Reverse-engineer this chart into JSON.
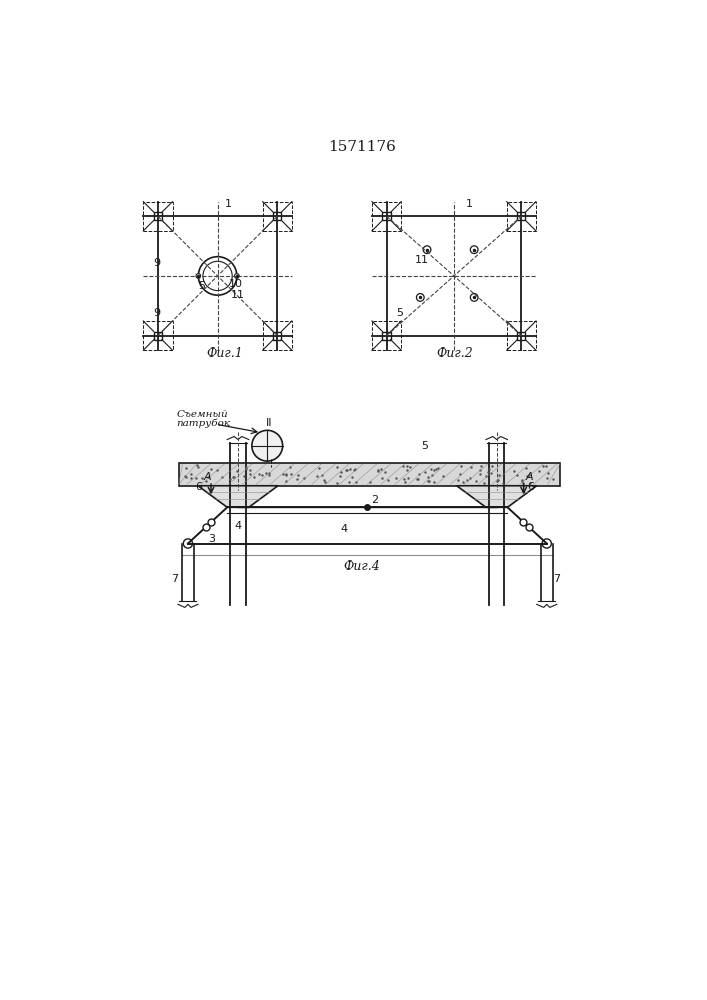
{
  "title": "1571176",
  "fig1_label": "Фиг.1",
  "fig2_label": "Фиг.2",
  "fig4_label": "Фиг.4",
  "съемный": "Съемный",
  "патрубок": "патрубок",
  "line_color": "#1a1a1a",
  "bg_color": "#ffffff",
  "dashed_color": "#444444"
}
